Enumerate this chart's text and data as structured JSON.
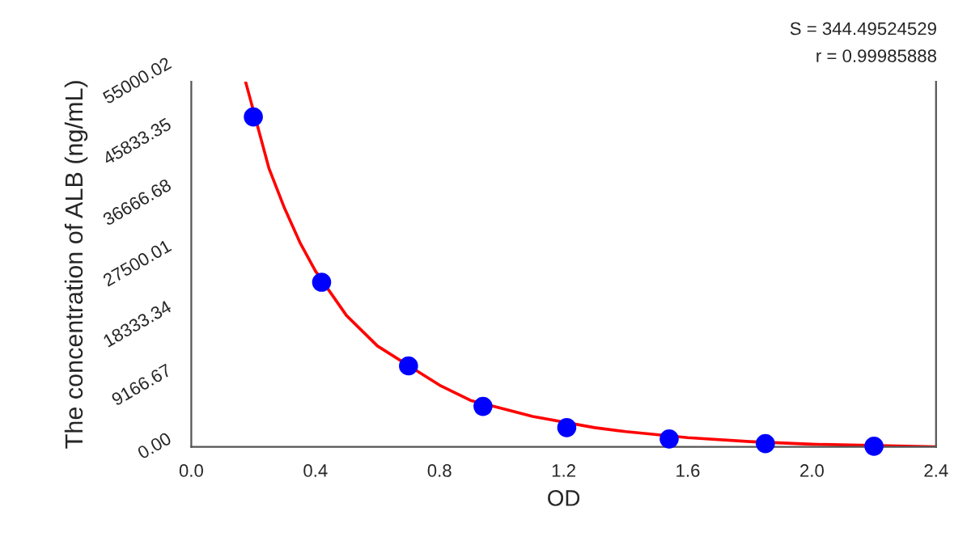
{
  "chart_data": {
    "type": "scatter",
    "xlabel": "OD",
    "ylabel": "The concentration of ALB (ng/mL)",
    "annotations": [
      "S = 344.49524529",
      "r = 0.99985888"
    ],
    "series": [
      {
        "type": "scatter",
        "color": "#0000ff",
        "marker": "circle",
        "x": [
          0.2,
          0.42,
          0.7,
          0.94,
          1.21,
          1.54,
          1.85,
          2.2
        ],
        "values": [
          49700,
          24800,
          12200,
          6100,
          2900,
          1200,
          500,
          100
        ]
      },
      {
        "type": "line",
        "color": "#ff0000",
        "marker": "none",
        "line_style": "solid",
        "x": [
          0.175,
          0.25,
          0.3,
          0.35,
          0.4,
          0.5,
          0.6,
          0.8,
          0.9,
          1.0,
          1.1,
          1.3,
          1.4,
          1.6,
          1.8,
          2.0,
          2.4
        ],
        "values": [
          55000,
          42000,
          36000,
          30800,
          26500,
          19800,
          15200,
          9300,
          7000,
          5800,
          4600,
          2900,
          2300,
          1400,
          800,
          400,
          0
        ]
      }
    ],
    "xlim": [
      0,
      2.4
    ],
    "xticks": [
      {
        "value": 0,
        "label": "0.0"
      },
      0.4,
      0.8,
      1.2,
      1.6,
      {
        "value": 2.0,
        "label": "2.0"
      },
      2.4
    ],
    "ylim": [
      0,
      55000.02
    ],
    "yticks": [
      {
        "value": 0,
        "label": "0.00"
      },
      9166.67,
      18333.34,
      27500.01,
      36666.68,
      45833.35,
      55000.02
    ],
    "grid": false,
    "legend": false
  }
}
